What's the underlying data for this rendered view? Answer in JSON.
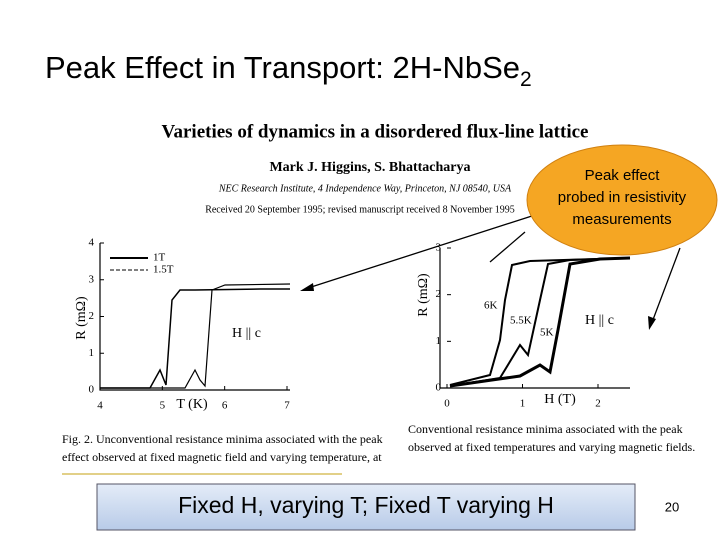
{
  "title": {
    "text": "Peak Effect in Transport: 2H-NbSe",
    "subscript": "2"
  },
  "paper": {
    "title": "Varieties of dynamics in a disordered flux-line lattice",
    "authors": "Mark J. Higgins, S. Bhattacharya",
    "affiliation": "NEC Research Institute, 4 Independence Way, Princeton, NJ 08540, USA",
    "received": "Received 20 September 1995; revised manuscript received 8 November 1995"
  },
  "callout": [
    "Peak effect",
    "probed in resistivity",
    "measurements"
  ],
  "left_plot": {
    "ylabel": "R (mΩ)",
    "xlabel": "T (K)",
    "yticks": [
      "0",
      "1",
      "2",
      "3",
      "4"
    ],
    "xticks": [
      "4",
      "5",
      "6",
      "7"
    ],
    "legend": [
      "1T",
      "1.5T"
    ],
    "annotation": "H || c"
  },
  "right_plot": {
    "ylabel": "R (mΩ)",
    "xlabel": "H (T)",
    "yticks": [
      "0",
      "1",
      "2",
      "3"
    ],
    "xticks": [
      "0",
      "1",
      "2"
    ],
    "curve_labels": [
      "6K",
      "5.5K",
      "5K"
    ],
    "annotation": "H || c"
  },
  "captions": {
    "left": [
      "Fig. 2. Unconventional resistance minima associated with the peak",
      "effect observed at fixed magnetic field and varying temperature, at"
    ],
    "right": [
      "Conventional resistance minima associated with the peak",
      "observed at fixed temperatures and varying magnetic fields."
    ]
  },
  "footer": "Fixed H, varying T; Fixed T varying H",
  "page_number": "20"
}
